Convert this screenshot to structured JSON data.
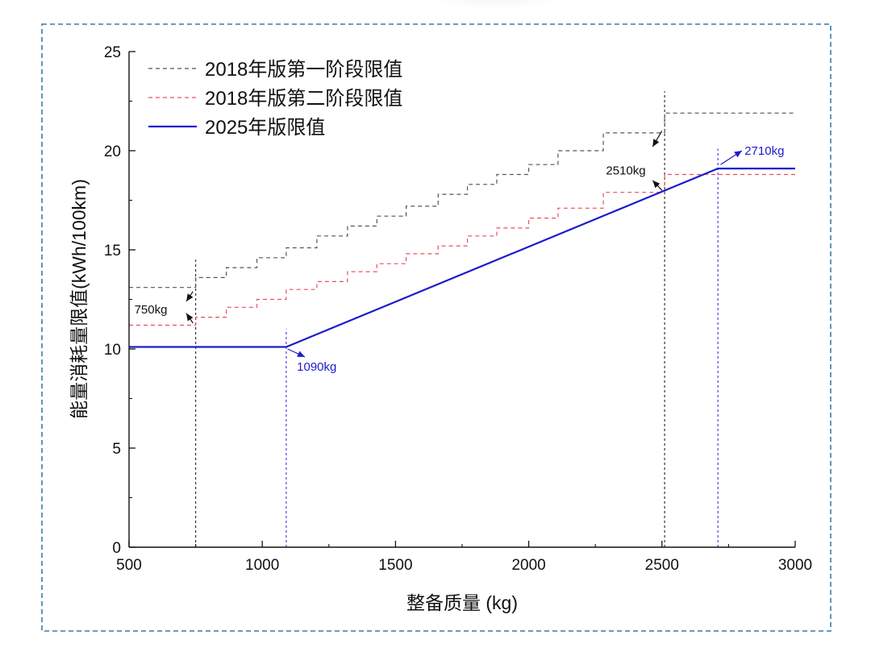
{
  "chart_data": {
    "type": "line",
    "title": "",
    "xlabel": "整备质量 (kg)",
    "ylabel": "能量消耗量限值(kWh/100km)",
    "xlim": [
      500,
      3000
    ],
    "ylim": [
      0,
      25
    ],
    "x_ticks": [
      500,
      1000,
      1500,
      2000,
      2500,
      3000
    ],
    "y_ticks": [
      0,
      5,
      10,
      15,
      20,
      25
    ],
    "x_tick_labels": [
      "500",
      "1000",
      "1500",
      "2000",
      "2500",
      "3000"
    ],
    "y_tick_labels": [
      "0",
      "5",
      "10",
      "15",
      "20",
      "25"
    ],
    "grid": false,
    "legend_position": "top-left",
    "series": [
      {
        "name": "2018年版第一阶段限值",
        "style": "dashed-step",
        "color": "#555555",
        "breaks": [
          500,
          750,
          865,
          980,
          1090,
          1205,
          1320,
          1430,
          1540,
          1660,
          1770,
          1880,
          2000,
          2110,
          2280,
          2510,
          3000
        ],
        "levels": [
          13.1,
          13.6,
          14.1,
          14.6,
          15.1,
          15.7,
          16.2,
          16.7,
          17.2,
          17.8,
          18.3,
          18.8,
          19.3,
          20.0,
          20.9,
          21.9
        ]
      },
      {
        "name": "2018年版第二阶段限值",
        "style": "dashed-step",
        "color": "#e8505b",
        "breaks": [
          500,
          750,
          865,
          980,
          1090,
          1205,
          1320,
          1430,
          1540,
          1660,
          1770,
          1880,
          2000,
          2110,
          2280,
          2510,
          3000
        ],
        "levels": [
          11.2,
          11.6,
          12.1,
          12.5,
          13.0,
          13.4,
          13.9,
          14.3,
          14.8,
          15.2,
          15.7,
          16.1,
          16.6,
          17.1,
          17.9,
          18.8
        ]
      },
      {
        "name": "2025年版限值",
        "style": "solid",
        "color": "#1c1ccc",
        "x": [
          500,
          1090,
          2710,
          3000
        ],
        "y": [
          10.1,
          10.1,
          19.1,
          19.1
        ]
      }
    ],
    "reference_lines": [
      {
        "x": 750,
        "y_to": 14.5,
        "color": "#333333"
      },
      {
        "x": 1090,
        "y_to": 11.0,
        "color": "#4444ee"
      },
      {
        "x": 2510,
        "y_to": 23.0,
        "color": "#333333"
      },
      {
        "x": 2710,
        "y_to": 20.1,
        "color": "#4444ee"
      }
    ],
    "annotations": [
      {
        "text": "750kg",
        "color": "black",
        "label_at": [
          520,
          12.0
        ],
        "arrows": [
          [
            740,
            12.9,
            715,
            12.4
          ],
          [
            740,
            11.3,
            715,
            11.8
          ]
        ]
      },
      {
        "text": "1090kg",
        "color": "blue",
        "label_at": [
          1130,
          9.1
        ],
        "arrows": [
          [
            1095,
            10.0,
            1160,
            9.6
          ]
        ]
      },
      {
        "text": "2510kg",
        "color": "black",
        "label_at": [
          2290,
          19.0
        ],
        "arrows": [
          [
            2500,
            21.0,
            2465,
            20.2
          ],
          [
            2500,
            18.0,
            2465,
            18.5
          ]
        ]
      },
      {
        "text": "2710kg",
        "color": "blue",
        "label_at": [
          2810,
          20.0
        ],
        "arrows": [
          [
            2720,
            19.3,
            2800,
            20.0
          ]
        ]
      }
    ]
  }
}
